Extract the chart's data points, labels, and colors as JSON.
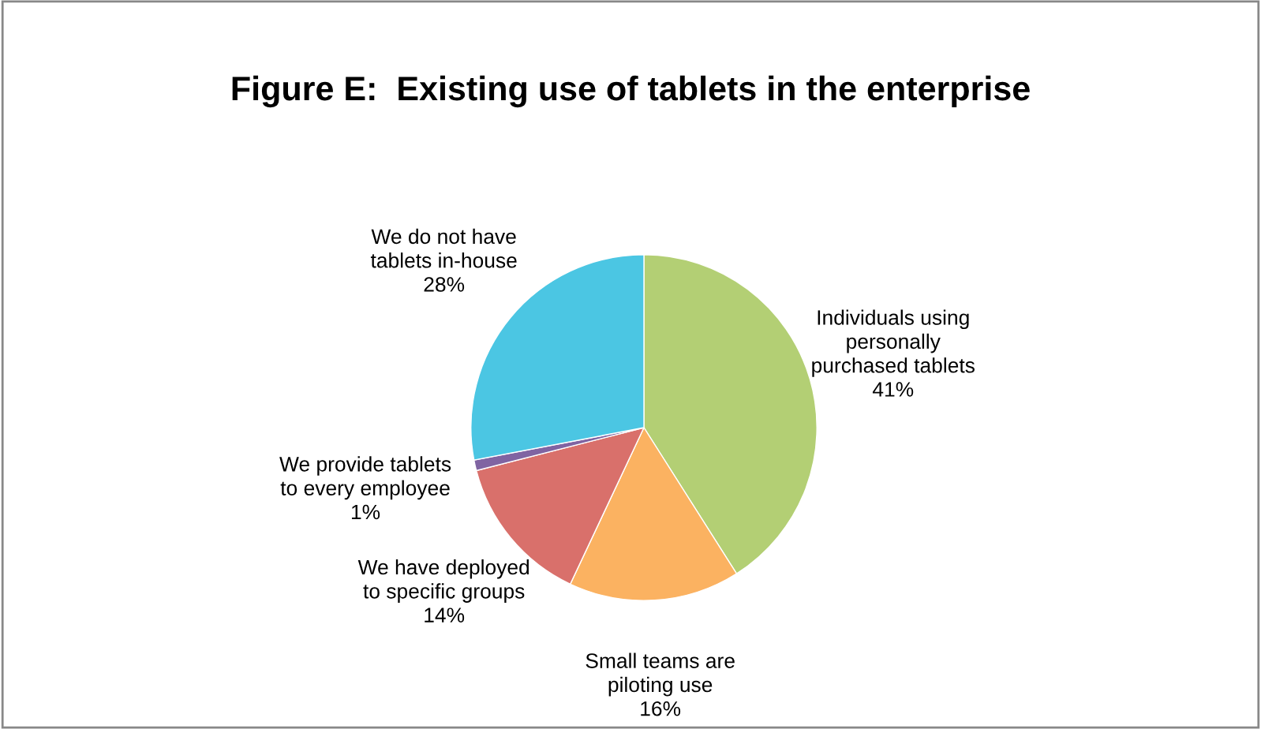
{
  "chart_data": {
    "type": "pie",
    "title": "Figure E:  Existing use of tablets in the enterprise",
    "categories": [
      "Individuals using\npersonally\npurchased tablets",
      "Small teams are\npiloting use",
      "We have deployed\nto specific groups",
      "We provide tablets\nto every employee",
      "We do not have\ntablets in-house"
    ],
    "values": [
      41,
      16,
      14,
      1,
      28
    ],
    "colors": [
      "#b3cf74",
      "#fbb261",
      "#d9706b",
      "#8064a2",
      "#4bc6e3"
    ],
    "value_labels": [
      "41%",
      "16%",
      "14%",
      "1%",
      "28%"
    ],
    "legend": false
  }
}
